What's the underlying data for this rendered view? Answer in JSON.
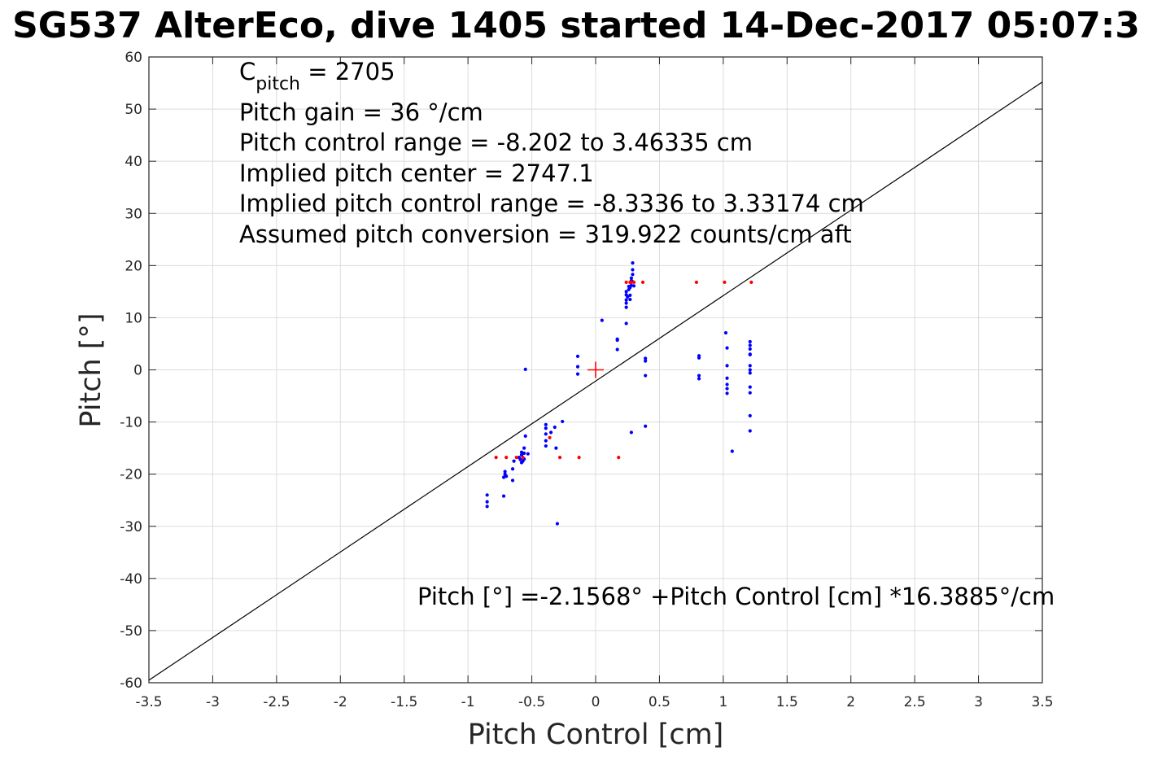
{
  "chart_data": {
    "type": "scatter",
    "title": "SG537 AlterEco, dive 1405 started 14-Dec-2017 05:07:3",
    "xlabel": "Pitch Control [cm]",
    "ylabel": "Pitch [°]",
    "xlim": [
      -3.5,
      3.5
    ],
    "ylim": [
      -60,
      60
    ],
    "xticks": [
      -3.5,
      -3,
      -2.5,
      -2,
      -1.5,
      -1,
      -0.5,
      0,
      0.5,
      1,
      1.5,
      2,
      2.5,
      3,
      3.5
    ],
    "yticks": [
      -60,
      -50,
      -40,
      -30,
      -20,
      -10,
      0,
      10,
      20,
      30,
      40,
      50,
      60
    ],
    "grid": true,
    "colors": {
      "blue": "#0000ff",
      "red": "#ff0000",
      "line": "#000000"
    },
    "annotations": {
      "c_pitch_main": "C",
      "c_pitch_sub": "pitch",
      "c_pitch_value": " = 2705",
      "lines": [
        "Pitch gain = 36 °/cm",
        "Pitch control range = -8.202 to 3.46335 cm",
        "Implied pitch center = 2747.1",
        "Implied pitch control range = -8.3336 to 3.33174 cm",
        "Assumed pitch conversion = 319.922 counts/cm aft"
      ],
      "fit_equation": "Pitch [°] =-2.1568° +Pitch Control [cm] *16.3885°/cm"
    },
    "fit_line": {
      "intercept": -2.1568,
      "slope": 16.3885
    },
    "center_marker": {
      "x": 0,
      "y": 0
    },
    "series": [
      {
        "color": "blue",
        "points": [
          [
            -0.85,
            -24
          ],
          [
            -0.85,
            -25.3
          ],
          [
            -0.85,
            -26.2
          ],
          [
            -0.72,
            -24.2
          ],
          [
            -0.72,
            -20.6
          ],
          [
            -0.71,
            -20
          ],
          [
            -0.71,
            -19.5
          ],
          [
            -0.7,
            -20.4
          ],
          [
            -0.65,
            -21.2
          ],
          [
            -0.65,
            -19
          ],
          [
            -0.64,
            -17.5
          ],
          [
            -0.6,
            -16.8
          ],
          [
            -0.59,
            -17.2
          ],
          [
            -0.58,
            -17.8
          ],
          [
            -0.58,
            -16.3
          ],
          [
            -0.58,
            -15.8
          ],
          [
            -0.57,
            -17.5
          ],
          [
            -0.56,
            -16
          ],
          [
            -0.56,
            -15
          ],
          [
            -0.55,
            -12.7
          ],
          [
            -0.55,
            0.1
          ],
          [
            -0.53,
            -16.1
          ],
          [
            -0.39,
            -10.5
          ],
          [
            -0.39,
            -11.2
          ],
          [
            -0.39,
            -12.3
          ],
          [
            -0.39,
            -13.6
          ],
          [
            -0.39,
            -14.6
          ],
          [
            -0.35,
            -12
          ],
          [
            -0.32,
            -11
          ],
          [
            -0.31,
            -15
          ],
          [
            -0.3,
            -29.5
          ],
          [
            -0.26,
            -9.9
          ],
          [
            -0.14,
            2.6
          ],
          [
            -0.14,
            0.6
          ],
          [
            -0.14,
            -0.8
          ],
          [
            0.05,
            9.5
          ],
          [
            -0.56,
            -17.1
          ],
          [
            0.17,
            5.9
          ],
          [
            0.17,
            5.7
          ],
          [
            0.17,
            3.9
          ],
          [
            0.24,
            12
          ],
          [
            0.24,
            12.8
          ],
          [
            0.24,
            13.4
          ],
          [
            0.24,
            14.4
          ],
          [
            0.24,
            15
          ],
          [
            0.24,
            8.9
          ],
          [
            0.25,
            14
          ],
          [
            0.26,
            16
          ],
          [
            0.26,
            15.4
          ],
          [
            0.27,
            14.3
          ],
          [
            0.27,
            13.5
          ],
          [
            0.27,
            15.8
          ],
          [
            0.28,
            16.2
          ],
          [
            0.28,
            17.1
          ],
          [
            0.28,
            17.6
          ],
          [
            0.29,
            18.3
          ],
          [
            0.29,
            19.2
          ],
          [
            0.29,
            20.5
          ],
          [
            0.29,
            16.9
          ],
          [
            0.3,
            16.1
          ],
          [
            0.28,
            -12
          ],
          [
            0.39,
            1.7
          ],
          [
            0.39,
            2.2
          ],
          [
            0.39,
            -1.1
          ],
          [
            0.39,
            -10.8
          ],
          [
            0.81,
            2.7
          ],
          [
            0.81,
            2.3
          ],
          [
            0.81,
            -1.1
          ],
          [
            0.81,
            -1.7
          ],
          [
            1.02,
            7.1
          ],
          [
            1.03,
            4.2
          ],
          [
            1.03,
            0.8
          ],
          [
            1.03,
            -1.6
          ],
          [
            1.03,
            -2.8
          ],
          [
            1.03,
            -3.6
          ],
          [
            1.03,
            -4.5
          ],
          [
            1.07,
            -15.6
          ],
          [
            1.21,
            5.4
          ],
          [
            1.21,
            4.7
          ],
          [
            1.21,
            4
          ],
          [
            1.21,
            3
          ],
          [
            1.21,
            2.9
          ],
          [
            1.21,
            0.8
          ],
          [
            1.21,
            0
          ],
          [
            1.21,
            -0.6
          ],
          [
            1.21,
            -3.3
          ],
          [
            1.21,
            -4.4
          ],
          [
            1.21,
            -8.8
          ],
          [
            1.21,
            -11.7
          ]
        ]
      },
      {
        "color": "red",
        "points": [
          [
            -0.78,
            -16.8
          ],
          [
            -0.7,
            -16.8
          ],
          [
            -0.62,
            -16.8
          ],
          [
            -0.57,
            -16.8
          ],
          [
            -0.36,
            -13
          ],
          [
            -0.28,
            -16.8
          ],
          [
            -0.13,
            -16.8
          ],
          [
            0.18,
            -16.8
          ],
          [
            0.24,
            16.8
          ],
          [
            0.27,
            16.8
          ],
          [
            0.28,
            16.8
          ],
          [
            0.3,
            16.8
          ],
          [
            0.37,
            16.8
          ],
          [
            0.79,
            16.8
          ],
          [
            1.01,
            16.8
          ],
          [
            1.22,
            16.8
          ]
        ]
      }
    ]
  }
}
